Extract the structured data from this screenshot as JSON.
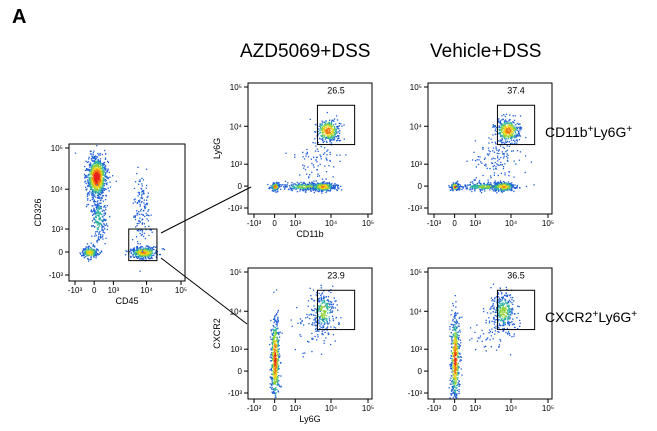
{
  "figure": {
    "panel_label": "A",
    "col_titles": [
      "AZD5069+DSS",
      "Vehicle+DSS"
    ],
    "gate_labels": {
      "neutrophil": {
        "base": "CD11b",
        "sup1": "+",
        "mid": "Ly6G",
        "sup2": "+"
      },
      "cxcr2": {
        "base": "CXCR2",
        "sup1": "+",
        "mid": "Ly6G",
        "sup2": "+"
      }
    }
  },
  "chart_data": [
    {
      "type": "scatter",
      "id": "parent",
      "xlabel": "CD45",
      "ylabel": "CD326",
      "x_scale": "biexponential",
      "y_scale": "biexponential",
      "xticks": [
        "-10³",
        "0",
        "10³",
        "10⁴",
        "10⁵"
      ],
      "yticks": [
        "10⁵",
        "10⁴",
        "10³",
        "0",
        "-10³"
      ],
      "xlim": [
        -1000,
        100000
      ],
      "ylim": [
        -1000,
        100000
      ],
      "populations": [
        {
          "name": "",
          "x_center": 0,
          "y_center": 20000
        },
        {
          "name": "",
          "x_center": 0,
          "y_center": 0
        },
        {
          "name": "",
          "x_center": 8000,
          "y_center": 0
        }
      ],
      "gate": {
        "x_range": [
          3000,
          20000
        ],
        "y_range": [
          -300,
          1000
        ]
      }
    },
    {
      "type": "scatter",
      "id": "azd-cd11b",
      "condition": "AZD5069+DSS",
      "xlabel": "CD11b",
      "ylabel": "Ly6G",
      "x_scale": "biexponential",
      "y_scale": "biexponential",
      "xticks": [
        "-10³",
        "0",
        "10³",
        "10⁴",
        "10⁵"
      ],
      "yticks": [
        "10⁵",
        "10⁴",
        "10³",
        "0",
        "-10³"
      ],
      "xlim": [
        -1000,
        100000
      ],
      "ylim": [
        -1000,
        100000
      ],
      "gate_percent": "26.5"
    },
    {
      "type": "scatter",
      "id": "veh-cd11b",
      "condition": "Vehicle+DSS",
      "xlabel": "",
      "ylabel": "",
      "x_scale": "biexponential",
      "y_scale": "biexponential",
      "xticks": [
        "-10³",
        "0",
        "10³",
        "10⁴",
        "10⁵"
      ],
      "yticks": [
        "10⁵",
        "10⁴",
        "10³",
        "0",
        "-10³"
      ],
      "xlim": [
        -1000,
        100000
      ],
      "ylim": [
        -1000,
        100000
      ],
      "gate_percent": "37.4"
    },
    {
      "type": "scatter",
      "id": "azd-cxcr2",
      "condition": "AZD5069+DSS",
      "xlabel": "Ly6G",
      "ylabel": "CXCR2",
      "x_scale": "biexponential",
      "y_scale": "biexponential",
      "xticks": [
        "-10³",
        "0",
        "10³",
        "10⁴",
        "10⁵"
      ],
      "yticks": [
        "10⁵",
        "10⁴",
        "10³",
        "0",
        "-10³"
      ],
      "xlim": [
        -1000,
        100000
      ],
      "ylim": [
        -1000,
        100000
      ],
      "gate_percent": "23.9"
    },
    {
      "type": "scatter",
      "id": "veh-cxcr2",
      "condition": "Vehicle+DSS",
      "xlabel": "",
      "ylabel": "",
      "x_scale": "biexponential",
      "y_scale": "biexponential",
      "xticks": [
        "-10³",
        "0",
        "10³",
        "10⁴",
        "10⁵"
      ],
      "yticks": [
        "10⁵",
        "10⁴",
        "10³",
        "0",
        "-10³"
      ],
      "xlim": [
        -1000,
        100000
      ],
      "ylim": [
        -1000,
        100000
      ],
      "gate_percent": "36.5"
    }
  ]
}
